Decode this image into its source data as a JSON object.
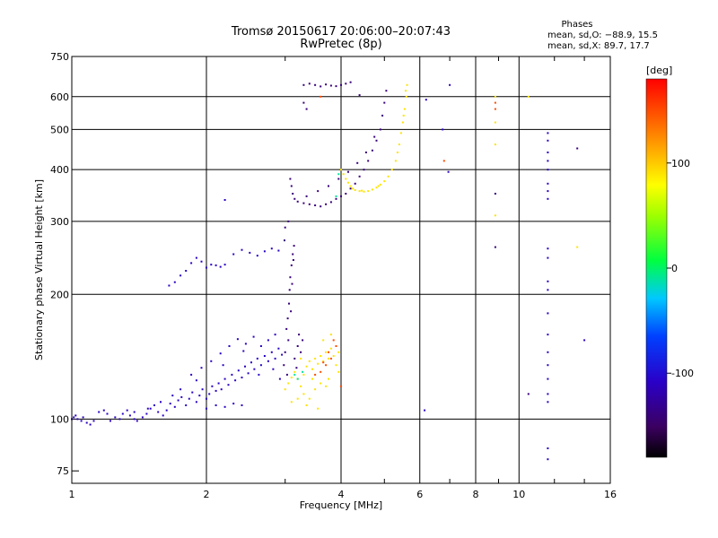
{
  "chart_data": {
    "type": "scatter",
    "title": "Tromsø 20150617 20:06:00–20:07:43",
    "subtitle": "RwPretec (8p)",
    "xlabel": "Frequency [MHz]",
    "ylabel": "Stationary phase Virtual Height [km]",
    "x_scale": "log",
    "y_scale": "log",
    "xlim": [
      1,
      16
    ],
    "ylim": [
      70,
      750
    ],
    "x_ticks": [
      1,
      2,
      4,
      6,
      8,
      10,
      16
    ],
    "y_ticks": [
      75,
      100,
      200,
      300,
      400,
      500,
      600,
      750
    ],
    "grid": true,
    "colorbar": {
      "label": "[deg]",
      "range": [
        -180,
        180
      ],
      "ticks": [
        100,
        0,
        -100
      ],
      "colormap": "rainbow"
    },
    "info": {
      "heading": "Phases",
      "line_o": "mean, sd,O: −88.9, 15.5",
      "line_x": "mean, sd,X: 89.7, 17.7"
    },
    "series": [
      {
        "color_value": -110,
        "points": [
          [
            1.0,
            100
          ],
          [
            1.01,
            101
          ],
          [
            1.02,
            102
          ],
          [
            1.03,
            100
          ],
          [
            1.05,
            99
          ],
          [
            1.06,
            101
          ],
          [
            1.08,
            98
          ],
          [
            1.1,
            97
          ],
          [
            1.12,
            99
          ],
          [
            1.15,
            104
          ],
          [
            1.18,
            105
          ],
          [
            1.2,
            103
          ],
          [
            1.22,
            99
          ],
          [
            1.25,
            101
          ],
          [
            1.28,
            100
          ],
          [
            1.3,
            103
          ],
          [
            1.33,
            105
          ],
          [
            1.35,
            102
          ],
          [
            1.38,
            100
          ],
          [
            1.4,
            99
          ],
          [
            1.44,
            101
          ],
          [
            1.47,
            103
          ],
          [
            1.5,
            106
          ],
          [
            1.53,
            108
          ],
          [
            1.56,
            104
          ],
          [
            1.6,
            102
          ],
          [
            1.63,
            105
          ],
          [
            1.66,
            109
          ],
          [
            1.7,
            107
          ],
          [
            1.73,
            111
          ],
          [
            1.76,
            113
          ],
          [
            1.8,
            108
          ],
          [
            1.83,
            112
          ],
          [
            1.86,
            116
          ],
          [
            1.9,
            110
          ],
          [
            1.93,
            114
          ],
          [
            1.96,
            118
          ],
          [
            2.0,
            112
          ],
          [
            2.03,
            115
          ],
          [
            2.06,
            120
          ],
          [
            2.1,
            117
          ],
          [
            2.13,
            122
          ],
          [
            2.16,
            118
          ],
          [
            2.2,
            125
          ],
          [
            2.24,
            121
          ],
          [
            2.28,
            128
          ],
          [
            2.32,
            124
          ],
          [
            2.36,
            131
          ],
          [
            2.4,
            126
          ],
          [
            2.44,
            134
          ],
          [
            2.48,
            129
          ],
          [
            2.52,
            137
          ],
          [
            2.56,
            132
          ],
          [
            2.6,
            140
          ],
          [
            2.65,
            135
          ],
          [
            2.7,
            142
          ],
          [
            2.75,
            138
          ],
          [
            2.8,
            145
          ],
          [
            2.85,
            140
          ],
          [
            2.9,
            148
          ],
          [
            2.95,
            143
          ],
          [
            1.85,
            128
          ],
          [
            1.95,
            133
          ],
          [
            2.05,
            138
          ],
          [
            2.15,
            144
          ],
          [
            2.25,
            150
          ],
          [
            2.35,
            156
          ],
          [
            2.45,
            152
          ],
          [
            2.55,
            158
          ],
          [
            2.65,
            150
          ],
          [
            2.75,
            155
          ],
          [
            2.85,
            160
          ],
          [
            2.0,
            106
          ],
          [
            2.1,
            108
          ],
          [
            2.2,
            107
          ],
          [
            2.3,
            109
          ],
          [
            2.4,
            108
          ],
          [
            1.9,
            124
          ],
          [
            2.18,
            135
          ],
          [
            2.42,
            146
          ],
          [
            2.62,
            128
          ],
          [
            2.82,
            132
          ],
          [
            2.92,
            125
          ],
          [
            1.75,
            118
          ],
          [
            1.68,
            114
          ],
          [
            1.58,
            110
          ],
          [
            1.48,
            106
          ],
          [
            1.38,
            104
          ],
          [
            1.65,
            210
          ],
          [
            1.7,
            214
          ],
          [
            1.75,
            222
          ],
          [
            1.8,
            228
          ],
          [
            1.85,
            238
          ],
          [
            1.9,
            245
          ],
          [
            1.95,
            240
          ],
          [
            2.0,
            232
          ],
          [
            2.05,
            236
          ],
          [
            2.1,
            235
          ],
          [
            2.15,
            233
          ],
          [
            2.2,
            236
          ],
          [
            2.3,
            250
          ],
          [
            2.4,
            256
          ],
          [
            2.5,
            252
          ],
          [
            2.6,
            248
          ],
          [
            2.7,
            254
          ],
          [
            2.8,
            258
          ],
          [
            2.9,
            255
          ],
          [
            2.2,
            338
          ],
          [
            6.15,
            105
          ],
          [
            6.2,
            590
          ],
          [
            7.0,
            640
          ],
          [
            6.95,
            395
          ],
          [
            6.75,
            500
          ],
          [
            11.6,
            80
          ],
          [
            11.6,
            85
          ],
          [
            11.6,
            110
          ],
          [
            11.6,
            115
          ],
          [
            11.6,
            125
          ],
          [
            11.6,
            135
          ],
          [
            11.6,
            145
          ],
          [
            11.6,
            160
          ],
          [
            11.6,
            180
          ],
          [
            11.6,
            205
          ],
          [
            11.6,
            215
          ],
          [
            11.6,
            245
          ],
          [
            11.6,
            258
          ],
          [
            11.6,
            340
          ],
          [
            11.6,
            355
          ],
          [
            11.6,
            370
          ],
          [
            11.6,
            400
          ],
          [
            11.6,
            420
          ],
          [
            11.6,
            440
          ],
          [
            11.6,
            470
          ],
          [
            11.6,
            490
          ],
          [
            14.0,
            155
          ]
        ]
      },
      {
        "color_value": -140,
        "points": [
          [
            3.02,
            165
          ],
          [
            3.04,
            175
          ],
          [
            3.06,
            190
          ],
          [
            3.07,
            205
          ],
          [
            3.08,
            220
          ],
          [
            3.1,
            235
          ],
          [
            3.12,
            250
          ],
          [
            3.14,
            262
          ],
          [
            3.0,
            145
          ],
          [
            2.98,
            135
          ],
          [
            3.05,
            155
          ],
          [
            3.09,
            182
          ],
          [
            3.11,
            212
          ],
          [
            3.13,
            242
          ],
          [
            3.03,
            128
          ],
          [
            2.99,
            270
          ],
          [
            3.0,
            290
          ],
          [
            3.05,
            300
          ],
          [
            3.08,
            380
          ],
          [
            3.1,
            365
          ],
          [
            3.12,
            350
          ],
          [
            3.15,
            340
          ],
          [
            3.2,
            335
          ],
          [
            3.3,
            332
          ],
          [
            3.4,
            330
          ],
          [
            3.5,
            328
          ],
          [
            3.6,
            326
          ],
          [
            3.7,
            330
          ],
          [
            3.8,
            334
          ],
          [
            3.9,
            340
          ],
          [
            4.0,
            345
          ],
          [
            4.1,
            350
          ],
          [
            4.2,
            360
          ],
          [
            4.3,
            370
          ],
          [
            4.4,
            385
          ],
          [
            4.5,
            400
          ],
          [
            4.6,
            420
          ],
          [
            4.7,
            445
          ],
          [
            4.8,
            470
          ],
          [
            4.9,
            500
          ],
          [
            4.95,
            540
          ],
          [
            5.0,
            580
          ],
          [
            5.05,
            620
          ],
          [
            4.75,
            480
          ],
          [
            4.55,
            440
          ],
          [
            4.35,
            415
          ],
          [
            4.15,
            395
          ],
          [
            3.95,
            380
          ],
          [
            3.75,
            365
          ],
          [
            3.55,
            355
          ],
          [
            3.35,
            345
          ],
          [
            3.3,
            580
          ],
          [
            3.35,
            560
          ],
          [
            3.3,
            640
          ],
          [
            3.4,
            645
          ],
          [
            3.5,
            640
          ],
          [
            3.6,
            635
          ],
          [
            3.7,
            642
          ],
          [
            3.8,
            638
          ],
          [
            3.9,
            636
          ],
          [
            4.0,
            640
          ],
          [
            4.1,
            645
          ],
          [
            4.2,
            650
          ],
          [
            4.4,
            605
          ],
          [
            3.2,
            150
          ],
          [
            3.25,
            145
          ],
          [
            3.15,
            140
          ],
          [
            3.22,
            160
          ],
          [
            3.28,
            155
          ],
          [
            3.18,
            133
          ],
          [
            10.5,
            115
          ],
          [
            8.85,
            350
          ],
          [
            8.85,
            260
          ],
          [
            13.5,
            450
          ]
        ]
      },
      {
        "color_value": 90,
        "points": [
          [
            3.0,
            118
          ],
          [
            3.05,
            122
          ],
          [
            3.1,
            126
          ],
          [
            3.15,
            130
          ],
          [
            3.2,
            125
          ],
          [
            3.25,
            120
          ],
          [
            3.3,
            128
          ],
          [
            3.35,
            134
          ],
          [
            3.4,
            138
          ],
          [
            3.45,
            132
          ],
          [
            3.5,
            140
          ],
          [
            3.55,
            136
          ],
          [
            3.6,
            142
          ],
          [
            3.65,
            138
          ],
          [
            3.7,
            145
          ],
          [
            3.75,
            140
          ],
          [
            3.8,
            148
          ],
          [
            3.85,
            142
          ],
          [
            3.9,
            150
          ],
          [
            3.95,
            145
          ],
          [
            3.3,
            115
          ],
          [
            3.4,
            112
          ],
          [
            3.5,
            118
          ],
          [
            3.6,
            122
          ],
          [
            3.7,
            120
          ],
          [
            3.2,
            112
          ],
          [
            3.1,
            110
          ],
          [
            3.35,
            108
          ],
          [
            3.55,
            106
          ],
          [
            3.75,
            125
          ],
          [
            3.9,
            135
          ],
          [
            3.65,
            155
          ],
          [
            3.8,
            160
          ],
          [
            3.95,
            130
          ],
          [
            3.45,
            125
          ],
          [
            3.25,
            140
          ],
          [
            4.0,
            400
          ],
          [
            4.05,
            390
          ],
          [
            4.1,
            380
          ],
          [
            4.15,
            372
          ],
          [
            4.2,
            365
          ],
          [
            4.25,
            360
          ],
          [
            4.3,
            357
          ],
          [
            4.4,
            355
          ],
          [
            4.5,
            354
          ],
          [
            4.6,
            355
          ],
          [
            4.7,
            358
          ],
          [
            4.8,
            362
          ],
          [
            4.9,
            368
          ],
          [
            5.0,
            375
          ],
          [
            5.1,
            385
          ],
          [
            5.2,
            400
          ],
          [
            5.3,
            420
          ],
          [
            5.35,
            440
          ],
          [
            5.4,
            460
          ],
          [
            5.45,
            490
          ],
          [
            5.5,
            520
          ],
          [
            5.55,
            560
          ],
          [
            5.6,
            600
          ],
          [
            5.62,
            640
          ],
          [
            5.58,
            620
          ],
          [
            5.52,
            540
          ],
          [
            4.45,
            356
          ],
          [
            4.85,
            365
          ],
          [
            8.85,
            600
          ],
          [
            8.85,
            520
          ],
          [
            8.85,
            460
          ],
          [
            8.85,
            310
          ],
          [
            10.5,
            600
          ],
          [
            13.5,
            260
          ]
        ]
      },
      {
        "color_value": 150,
        "points": [
          [
            3.8,
            140
          ],
          [
            3.9,
            150
          ],
          [
            3.7,
            135
          ],
          [
            3.6,
            130
          ],
          [
            3.75,
            145
          ],
          [
            3.85,
            155
          ],
          [
            3.5,
            128
          ],
          [
            3.65,
            137
          ],
          [
            8.85,
            560
          ],
          [
            8.85,
            580
          ],
          [
            3.6,
            600
          ],
          [
            6.8,
            420
          ],
          [
            4.0,
            120
          ]
        ]
      },
      {
        "color_value": -10,
        "points": [
          [
            3.2,
            125
          ],
          [
            3.28,
            130
          ],
          [
            3.15,
            128
          ],
          [
            3.9,
            345
          ],
          [
            3.95,
            390
          ]
        ]
      }
    ]
  }
}
